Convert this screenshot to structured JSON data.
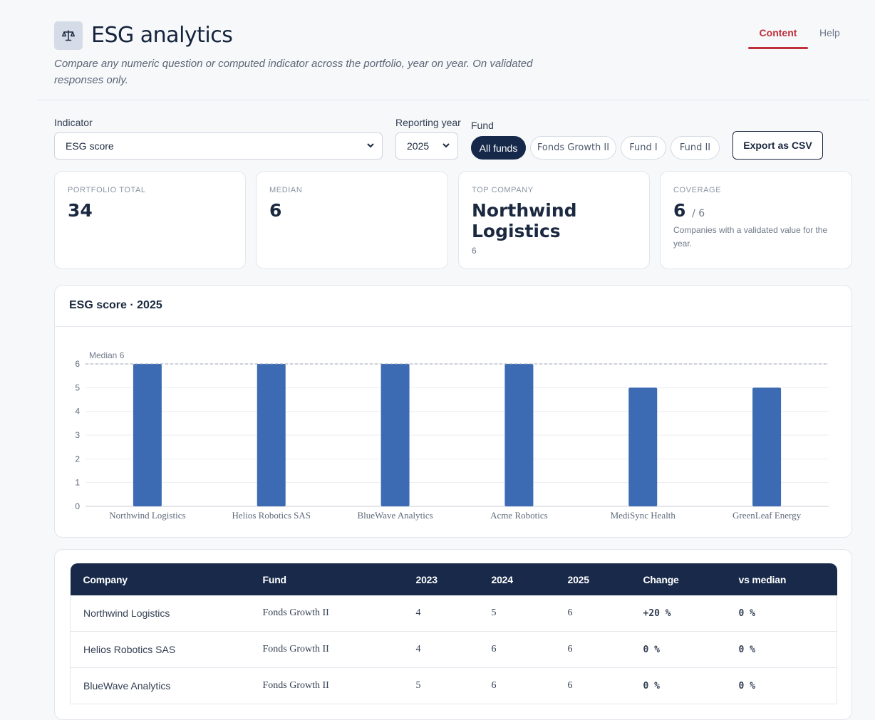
{
  "header": {
    "title": "ESG analytics",
    "subtitle": "Compare any numeric question or computed indicator across the portfolio, year on year. On validated responses only.",
    "icon": "scale-icon",
    "nav": {
      "content_label": "Content",
      "help_label": "Help"
    },
    "accent_color": "#c0303a"
  },
  "filters": {
    "indicator_label": "Indicator",
    "indicator_value": "ESG score",
    "year_label": "Reporting year",
    "year_value": "2025",
    "fund_label": "Fund",
    "funds": [
      "All funds",
      "Fonds Growth II",
      "Fund I",
      "Fund II"
    ],
    "active_fund": "All funds",
    "export_label": "Export as CSV"
  },
  "kpis": {
    "portfolio_total": {
      "label": "Portfolio total",
      "value": "34"
    },
    "median": {
      "label": "Median",
      "value": "6"
    },
    "top_company": {
      "label": "Top company",
      "value": "Northwind Logistics",
      "sub": "6"
    },
    "coverage": {
      "label": "Coverage",
      "value": "6",
      "of": "/ 6",
      "sub": "Companies with a validated value for the year."
    }
  },
  "chart_data": {
    "type": "bar",
    "title": "ESG score · 2025",
    "categories": [
      "Northwind Logistics",
      "Helios Robotics SAS",
      "BlueWave Analytics",
      "Acme Robotics",
      "MediSync Health",
      "GreenLeaf Energy"
    ],
    "values": [
      6,
      6,
      6,
      6,
      5,
      5
    ],
    "ylim": [
      0,
      6
    ],
    "yticks": [
      0,
      1,
      2,
      3,
      4,
      5,
      6
    ],
    "grid": true,
    "bar_color": "#3d6bb3",
    "reference_line": {
      "label": "Median 6",
      "value": 6
    }
  },
  "table": {
    "columns": [
      "Company",
      "Fund",
      "2023",
      "2024",
      "2025",
      "Change",
      "vs median"
    ],
    "rows": [
      [
        "Northwind Logistics",
        "Fonds Growth II",
        "4",
        "5",
        "6",
        "+20 %",
        "0 %"
      ],
      [
        "Helios Robotics SAS",
        "Fonds Growth II",
        "4",
        "6",
        "6",
        "0 %",
        "0 %"
      ],
      [
        "BlueWave Analytics",
        "Fonds Growth II",
        "5",
        "6",
        "6",
        "0 %",
        "0 %"
      ]
    ]
  }
}
